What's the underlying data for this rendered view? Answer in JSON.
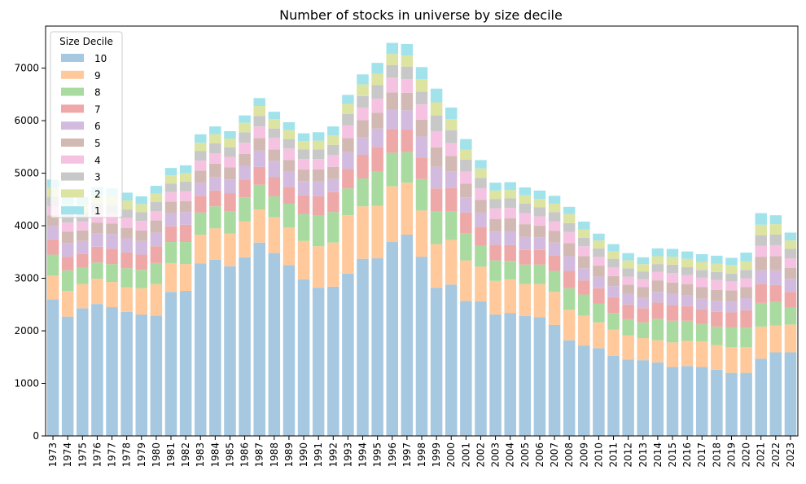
{
  "chart_data": {
    "type": "bar",
    "stacked": true,
    "title": "Number of stocks in universe by size decile",
    "xlabel": "",
    "ylabel": "",
    "ylim": [
      0,
      7800
    ],
    "yticks": [
      0,
      1000,
      2000,
      3000,
      4000,
      5000,
      6000,
      7000
    ],
    "grid": false,
    "legend": {
      "title": "Size Decile",
      "position": "top-left"
    },
    "categories": [
      "1973",
      "1974",
      "1975",
      "1976",
      "1977",
      "1978",
      "1979",
      "1980",
      "1981",
      "1982",
      "1983",
      "1984",
      "1985",
      "1986",
      "1987",
      "1988",
      "1989",
      "1990",
      "1991",
      "1992",
      "1993",
      "1994",
      "1995",
      "1996",
      "1997",
      "1998",
      "1999",
      "2000",
      "2001",
      "2002",
      "2003",
      "2004",
      "2005",
      "2006",
      "2007",
      "2008",
      "2009",
      "2010",
      "2011",
      "2012",
      "2013",
      "2014",
      "2015",
      "2016",
      "2017",
      "2018",
      "2019",
      "2020",
      "2021",
      "2022",
      "2023"
    ],
    "series": [
      {
        "name": "10",
        "color": "#a6c8e0",
        "values": [
          2600,
          2270,
          2430,
          2510,
          2450,
          2360,
          2310,
          2290,
          2740,
          2760,
          3280,
          3350,
          3230,
          3400,
          3680,
          3480,
          3250,
          2980,
          2820,
          2840,
          3090,
          3370,
          3380,
          3690,
          3830,
          3410,
          2820,
          2880,
          2570,
          2560,
          2310,
          2340,
          2280,
          2260,
          2110,
          1820,
          1720,
          1670,
          1520,
          1450,
          1440,
          1400,
          1310,
          1330,
          1310,
          1260,
          1200,
          1200,
          1470,
          1590,
          1590
        ]
      },
      {
        "name": "9",
        "color": "#ffc99b",
        "values": [
          450,
          490,
          460,
          480,
          480,
          470,
          500,
          600,
          550,
          510,
          550,
          600,
          620,
          680,
          630,
          680,
          720,
          730,
          790,
          840,
          1110,
          1000,
          1000,
          1060,
          990,
          880,
          830,
          850,
          770,
          660,
          640,
          640,
          610,
          630,
          630,
          580,
          570,
          490,
          500,
          460,
          420,
          420,
          470,
          480,
          490,
          470,
          490,
          490,
          610,
          510,
          530
        ]
      },
      {
        "name": "8",
        "color": "#a9dba0",
        "values": [
          400,
          390,
          320,
          310,
          340,
          360,
          350,
          400,
          400,
          420,
          420,
          420,
          420,
          460,
          470,
          400,
          450,
          510,
          580,
          580,
          510,
          530,
          650,
          640,
          580,
          600,
          630,
          540,
          510,
          400,
          390,
          350,
          370,
          370,
          400,
          410,
          400,
          360,
          320,
          310,
          300,
          410,
          410,
          380,
          330,
          350,
          380,
          370,
          450,
          450,
          330
        ]
      },
      {
        "name": "7",
        "color": "#efa8a8",
        "values": [
          290,
          260,
          250,
          300,
          290,
          300,
          290,
          320,
          300,
          330,
          320,
          300,
          350,
          340,
          340,
          370,
          320,
          360,
          370,
          380,
          370,
          450,
          470,
          450,
          430,
          410,
          430,
          450,
          400,
          360,
          300,
          300,
          280,
          280,
          300,
          330,
          270,
          290,
          300,
          280,
          270,
          310,
          300,
          280,
          280,
          280,
          280,
          330,
          360,
          320,
          290
        ]
      },
      {
        "name": "6",
        "color": "#d2bbdf",
        "values": [
          250,
          260,
          250,
          250,
          280,
          270,
          260,
          260,
          250,
          240,
          250,
          260,
          260,
          260,
          310,
          300,
          300,
          270,
          280,
          250,
          320,
          330,
          350,
          370,
          370,
          400,
          410,
          310,
          290,
          270,
          250,
          270,
          250,
          240,
          240,
          280,
          230,
          220,
          210,
          200,
          200,
          200,
          210,
          200,
          200,
          210,
          210,
          230,
          260,
          280,
          250
        ]
      },
      {
        "name": "5",
        "color": "#d3b9b4",
        "values": [
          210,
          220,
          200,
          210,
          200,
          200,
          200,
          230,
          220,
          210,
          230,
          250,
          230,
          230,
          240,
          220,
          210,
          220,
          230,
          230,
          270,
          330,
          300,
          330,
          330,
          320,
          370,
          300,
          260,
          240,
          240,
          240,
          240,
          220,
          220,
          250,
          230,
          210,
          190,
          180,
          200,
          220,
          220,
          220,
          220,
          210,
          210,
          210,
          260,
          270,
          210
        ]
      },
      {
        "name": "4",
        "color": "#f5c3e1",
        "values": [
          170,
          170,
          170,
          180,
          180,
          190,
          180,
          180,
          180,
          190,
          190,
          200,
          200,
          210,
          220,
          220,
          220,
          200,
          200,
          230,
          240,
          240,
          270,
          280,
          260,
          290,
          310,
          240,
          230,
          220,
          200,
          200,
          210,
          180,
          180,
          210,
          190,
          170,
          170,
          150,
          150,
          160,
          180,
          170,
          180,
          190,
          170,
          170,
          210,
          210,
          180
        ]
      },
      {
        "name": "3",
        "color": "#c8c8c8",
        "values": [
          180,
          180,
          170,
          180,
          180,
          160,
          170,
          170,
          160,
          180,
          180,
          190,
          180,
          200,
          200,
          180,
          180,
          180,
          180,
          190,
          220,
          220,
          260,
          240,
          240,
          240,
          300,
          250,
          230,
          200,
          180,
          180,
          180,
          170,
          180,
          170,
          160,
          160,
          160,
          160,
          150,
          150,
          160,
          150,
          150,
          150,
          150,
          160,
          200,
          200,
          180
        ]
      },
      {
        "name": "2",
        "color": "#dde3a1",
        "values": [
          180,
          170,
          160,
          170,
          160,
          170,
          150,
          160,
          160,
          160,
          160,
          170,
          170,
          180,
          190,
          180,
          170,
          160,
          170,
          180,
          190,
          220,
          210,
          210,
          210,
          240,
          250,
          210,
          190,
          180,
          160,
          160,
          160,
          160,
          160,
          170,
          160,
          150,
          150,
          150,
          140,
          150,
          150,
          160,
          150,
          160,
          160,
          160,
          200,
          200,
          160
        ]
      },
      {
        "name": "1",
        "color": "#a2e3eb",
        "values": [
          150,
          150,
          140,
          150,
          150,
          150,
          150,
          150,
          140,
          150,
          160,
          150,
          140,
          140,
          150,
          140,
          150,
          150,
          160,
          170,
          170,
          190,
          210,
          210,
          220,
          230,
          260,
          220,
          200,
          160,
          150,
          150,
          150,
          160,
          150,
          140,
          150,
          130,
          130,
          140,
          130,
          150,
          150,
          140,
          150,
          150,
          140,
          170,
          220,
          170,
          150
        ]
      }
    ]
  }
}
